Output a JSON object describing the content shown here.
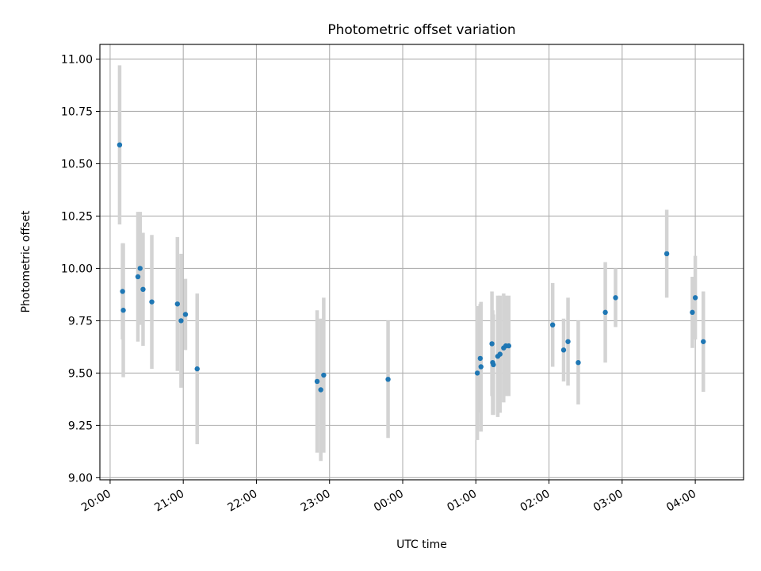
{
  "chart_data": {
    "type": "scatter",
    "title": "Photometric offset variation",
    "xlabel": "UTC time",
    "ylabel": "Photometric offset",
    "x_unit": "hours",
    "xlim": [
      19.86,
      28.66
    ],
    "ylim": [
      8.99,
      11.07
    ],
    "grid": true,
    "x_ticks": [
      {
        "value": 20,
        "label": "20:00"
      },
      {
        "value": 21,
        "label": "21:00"
      },
      {
        "value": 22,
        "label": "22:00"
      },
      {
        "value": 23,
        "label": "23:00"
      },
      {
        "value": 24,
        "label": "00:00"
      },
      {
        "value": 25,
        "label": "01:00"
      },
      {
        "value": 26,
        "label": "02:00"
      },
      {
        "value": 27,
        "label": "03:00"
      },
      {
        "value": 28,
        "label": "04:00"
      }
    ],
    "y_ticks": [
      {
        "value": 9.0,
        "label": "9.00"
      },
      {
        "value": 9.25,
        "label": "9.25"
      },
      {
        "value": 9.5,
        "label": "9.50"
      },
      {
        "value": 9.75,
        "label": "9.75"
      },
      {
        "value": 10.0,
        "label": "10.00"
      },
      {
        "value": 10.25,
        "label": "10.25"
      },
      {
        "value": 10.5,
        "label": "10.50"
      },
      {
        "value": 10.75,
        "label": "10.75"
      },
      {
        "value": 11.0,
        "label": "11.00"
      }
    ],
    "series": [
      {
        "marker_color": "#1f77b4",
        "errorbar_color": "#d3d3d3",
        "points": [
          {
            "x": 20.13,
            "y": 10.59,
            "err": 0.38
          },
          {
            "x": 20.17,
            "y": 9.89,
            "err": 0.23
          },
          {
            "x": 20.18,
            "y": 9.8,
            "err": 0.32
          },
          {
            "x": 20.38,
            "y": 9.96,
            "err": 0.31
          },
          {
            "x": 20.41,
            "y": 10.0,
            "err": 0.27
          },
          {
            "x": 20.45,
            "y": 9.9,
            "err": 0.27
          },
          {
            "x": 20.57,
            "y": 9.84,
            "err": 0.32
          },
          {
            "x": 20.92,
            "y": 9.83,
            "err": 0.32
          },
          {
            "x": 20.97,
            "y": 9.75,
            "err": 0.32
          },
          {
            "x": 21.03,
            "y": 9.78,
            "err": 0.17
          },
          {
            "x": 21.19,
            "y": 9.52,
            "err": 0.36
          },
          {
            "x": 22.83,
            "y": 9.46,
            "err": 0.34
          },
          {
            "x": 22.88,
            "y": 9.42,
            "err": 0.34
          },
          {
            "x": 22.92,
            "y": 9.49,
            "err": 0.37
          },
          {
            "x": 23.8,
            "y": 9.47,
            "err": 0.28
          },
          {
            "x": 25.02,
            "y": 9.5,
            "err": 0.32
          },
          {
            "x": 25.06,
            "y": 9.57,
            "err": 0.26
          },
          {
            "x": 25.07,
            "y": 9.53,
            "err": 0.31
          },
          {
            "x": 25.22,
            "y": 9.64,
            "err": 0.25
          },
          {
            "x": 25.23,
            "y": 9.55,
            "err": 0.25
          },
          {
            "x": 25.24,
            "y": 9.54,
            "err": 0.24
          },
          {
            "x": 25.3,
            "y": 9.58,
            "err": 0.29
          },
          {
            "x": 25.33,
            "y": 9.59,
            "err": 0.28
          },
          {
            "x": 25.38,
            "y": 9.62,
            "err": 0.26
          },
          {
            "x": 25.41,
            "y": 9.63,
            "err": 0.24
          },
          {
            "x": 25.45,
            "y": 9.63,
            "err": 0.24
          },
          {
            "x": 26.05,
            "y": 9.73,
            "err": 0.2
          },
          {
            "x": 26.2,
            "y": 9.61,
            "err": 0.15
          },
          {
            "x": 26.26,
            "y": 9.65,
            "err": 0.21
          },
          {
            "x": 26.4,
            "y": 9.55,
            "err": 0.2
          },
          {
            "x": 26.77,
            "y": 9.79,
            "err": 0.24
          },
          {
            "x": 26.91,
            "y": 9.86,
            "err": 0.14
          },
          {
            "x": 27.61,
            "y": 10.07,
            "err": 0.21
          },
          {
            "x": 27.96,
            "y": 9.79,
            "err": 0.17
          },
          {
            "x": 28.0,
            "y": 9.86,
            "err": 0.2
          },
          {
            "x": 28.11,
            "y": 9.65,
            "err": 0.24
          }
        ]
      }
    ]
  }
}
